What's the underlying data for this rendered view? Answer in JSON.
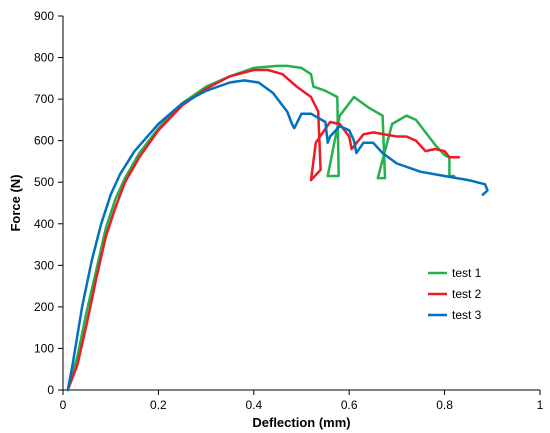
{
  "chart_data": {
    "type": "line",
    "title": "",
    "xlabel": "Deflection (mm)",
    "ylabel": "Force (N)",
    "xlim": [
      0,
      1
    ],
    "ylim": [
      0,
      900
    ],
    "xticks": [
      0,
      0.2,
      0.4,
      0.6,
      0.8,
      1
    ],
    "xtick_labels": [
      "0",
      "0.2",
      "0.4",
      "0.6",
      "0.8",
      "1"
    ],
    "yticks": [
      0,
      100,
      200,
      300,
      400,
      500,
      600,
      700,
      800,
      900
    ],
    "ytick_labels": [
      "0",
      "100",
      "200",
      "300",
      "400",
      "500",
      "600",
      "700",
      "800",
      "900"
    ],
    "grid": false,
    "legend_position": "right",
    "series": [
      {
        "name": "test 1",
        "color": "#22b14c",
        "x": [
          0.01,
          0.03,
          0.05,
          0.07,
          0.09,
          0.11,
          0.13,
          0.16,
          0.2,
          0.25,
          0.3,
          0.35,
          0.4,
          0.45,
          0.47,
          0.5,
          0.52,
          0.525,
          0.55,
          0.575,
          0.578,
          0.555,
          0.58,
          0.61,
          0.64,
          0.67,
          0.675,
          0.66,
          0.69,
          0.72,
          0.74,
          0.78,
          0.8,
          0.81,
          0.81,
          0.82
        ],
        "y": [
          0,
          80,
          190,
          290,
          390,
          460,
          510,
          570,
          630,
          690,
          730,
          755,
          775,
          780,
          780,
          775,
          760,
          730,
          720,
          705,
          515,
          515,
          660,
          705,
          680,
          660,
          510,
          510,
          640,
          660,
          650,
          590,
          565,
          560,
          515,
          515
        ]
      },
      {
        "name": "test 2",
        "color": "#ed1c24",
        "x": [
          0.01,
          0.03,
          0.05,
          0.07,
          0.09,
          0.11,
          0.13,
          0.16,
          0.2,
          0.25,
          0.3,
          0.35,
          0.4,
          0.43,
          0.46,
          0.49,
          0.52,
          0.535,
          0.54,
          0.52,
          0.53,
          0.56,
          0.58,
          0.6,
          0.605,
          0.63,
          0.65,
          0.7,
          0.72,
          0.74,
          0.76,
          0.78,
          0.8,
          0.81,
          0.83
        ],
        "y": [
          0,
          60,
          160,
          270,
          370,
          440,
          500,
          560,
          625,
          685,
          725,
          755,
          770,
          770,
          760,
          730,
          705,
          670,
          530,
          505,
          595,
          645,
          640,
          610,
          580,
          615,
          620,
          610,
          610,
          600,
          575,
          580,
          575,
          560,
          560
        ]
      },
      {
        "name": "test 3",
        "color": "#0070c0",
        "x": [
          0.01,
          0.02,
          0.04,
          0.06,
          0.08,
          0.1,
          0.12,
          0.15,
          0.2,
          0.25,
          0.3,
          0.35,
          0.38,
          0.41,
          0.44,
          0.47,
          0.48,
          0.485,
          0.5,
          0.52,
          0.55,
          0.555,
          0.56,
          0.58,
          0.6,
          0.61,
          0.615,
          0.63,
          0.65,
          0.67,
          0.7,
          0.75,
          0.8,
          0.85,
          0.885,
          0.89,
          0.88
        ],
        "y": [
          0,
          60,
          200,
          310,
          400,
          470,
          520,
          575,
          640,
          690,
          720,
          740,
          745,
          740,
          715,
          670,
          640,
          630,
          665,
          665,
          645,
          595,
          610,
          635,
          625,
          600,
          570,
          595,
          595,
          570,
          545,
          525,
          515,
          505,
          495,
          480,
          470
        ]
      }
    ]
  }
}
